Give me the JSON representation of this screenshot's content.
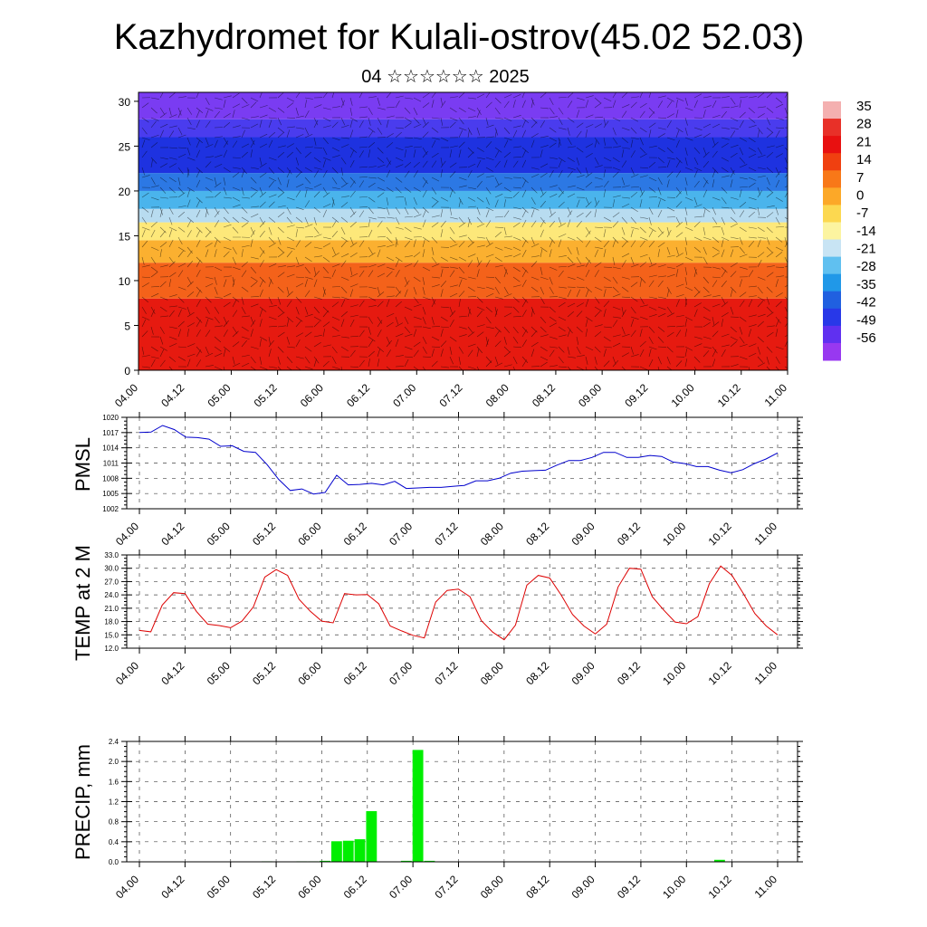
{
  "header": {
    "title": "Kazhydromet for Kulali-ostrov(45.02 52.03)",
    "subtitle": "04 ☆☆☆☆☆☆ 2025"
  },
  "colors": {
    "pmsl_line": "#0000cc",
    "temp_line": "#dd0000",
    "precip_bar": "#00ee00",
    "grid": "#444444"
  },
  "chart_data": [
    {
      "type": "heatmap",
      "title": "",
      "description_of_field": "temperature cross-section with wind barbs (height 0–30 km)",
      "y_ticks": [
        0,
        5,
        10,
        15,
        20,
        25,
        30
      ],
      "ylim": [
        0,
        31
      ],
      "x_tick_labels": [
        "04.00",
        "04.12",
        "05.00",
        "05.12",
        "06.00",
        "06.12",
        "07.00",
        "07.12",
        "08.00",
        "08.12",
        "09.00",
        "09.12",
        "10.00",
        "10.12",
        "11.00"
      ],
      "colorbar_labels": [
        "35",
        "28",
        "21",
        "14",
        "7",
        "0",
        "-7",
        "-14",
        "-21",
        "-28",
        "-35",
        "-42",
        "-49",
        "-56"
      ],
      "colorbar_colors": [
        "#f4b0b0",
        "#e83028",
        "#e81010",
        "#f04010",
        "#f87818",
        "#fca828",
        "#fcd850",
        "#fcf4a0",
        "#c8e4f4",
        "#60c0f0",
        "#2098e8",
        "#2060e0",
        "#2838e8",
        "#6030f0",
        "#9838f0"
      ],
      "layers": [
        {
          "from": 0,
          "to": 8,
          "color": "#e61a10"
        },
        {
          "from": 8,
          "to": 12,
          "color": "#f4621a"
        },
        {
          "from": 12,
          "to": 14.5,
          "color": "#fbb030"
        },
        {
          "from": 14.5,
          "to": 16.5,
          "color": "#fde87a"
        },
        {
          "from": 16.5,
          "to": 18,
          "color": "#b8dcf0"
        },
        {
          "from": 18,
          "to": 20,
          "color": "#4ab4ec"
        },
        {
          "from": 20,
          "to": 22,
          "color": "#2c78e4"
        },
        {
          "from": 22,
          "to": 26,
          "color": "#1e32e0"
        },
        {
          "from": 26,
          "to": 28,
          "color": "#4a3cee"
        },
        {
          "from": 28,
          "to": 31,
          "color": "#7a3cf2"
        }
      ]
    },
    {
      "type": "line",
      "ylabel": "PMSL",
      "ylim": [
        1002,
        1020
      ],
      "y_ticks": [
        "1002",
        "1005",
        "1008",
        "1011",
        "1014",
        "1017",
        "1020"
      ],
      "x_tick_labels": [
        "04.00",
        "04.12",
        "05.00",
        "05.12",
        "06.00",
        "06.12",
        "07.00",
        "07.12",
        "08.00",
        "08.12",
        "09.00",
        "09.12",
        "10.00",
        "10.12",
        "11.00"
      ],
      "series": [
        {
          "values": [
            1017.0,
            1017.1,
            1018.4,
            1017.6,
            1016.1,
            1016.0,
            1015.7,
            1014.3,
            1014.4,
            1013.3,
            1013.1,
            1010.7,
            1007.8,
            1005.6,
            1005.9,
            1004.9,
            1005.2,
            1008.6,
            1006.7,
            1006.8,
            1007.0,
            1006.7,
            1007.4,
            1006.0,
            1006.1,
            1006.2,
            1006.2,
            1006.4,
            1006.6,
            1007.5,
            1007.5,
            1008.0,
            1009.0,
            1009.4,
            1009.5,
            1009.6,
            1010.6,
            1011.5,
            1011.5,
            1012.1,
            1013.1,
            1013.1,
            1012.1,
            1012.1,
            1012.5,
            1012.3,
            1011.2,
            1010.9,
            1010.3,
            1010.3,
            1009.6,
            1009.1,
            1009.7,
            1010.9,
            1011.8,
            1013.0
          ]
        }
      ]
    },
    {
      "type": "line",
      "ylabel": "TEMP at 2 M",
      "ylim": [
        12,
        33
      ],
      "y_ticks": [
        "12.0",
        "15.0",
        "18.0",
        "21.0",
        "24.0",
        "27.0",
        "30.0",
        "33.0"
      ],
      "x_tick_labels": [
        "04.00",
        "04.12",
        "05.00",
        "05.12",
        "06.00",
        "06.12",
        "07.00",
        "07.12",
        "08.00",
        "08.12",
        "09.00",
        "09.12",
        "10.00",
        "10.12",
        "11.00"
      ],
      "series": [
        {
          "values": [
            16.0,
            15.7,
            21.7,
            24.5,
            24.3,
            20.3,
            17.4,
            17.1,
            16.6,
            18.1,
            21.3,
            28.0,
            29.7,
            28.4,
            23.0,
            20.3,
            18.1,
            17.7,
            24.3,
            24.0,
            24.1,
            22.0,
            17.0,
            15.9,
            14.9,
            14.3,
            22.4,
            25.0,
            25.3,
            23.6,
            18.2,
            15.6,
            13.9,
            17.2,
            26.2,
            28.4,
            27.8,
            24.0,
            19.6,
            17.0,
            15.2,
            17.4,
            25.8,
            30.0,
            29.8,
            23.6,
            20.6,
            17.9,
            17.5,
            19.1,
            26.5,
            30.5,
            28.4,
            24.3,
            19.8,
            17.0,
            15.0
          ]
        }
      ]
    },
    {
      "type": "bar",
      "ylabel": "PRECIP, mm",
      "ylim": [
        0,
        2.4
      ],
      "y_ticks": [
        "0.0",
        "0.4",
        "0.8",
        "1.2",
        "1.6",
        "2.0",
        "2.4"
      ],
      "x_tick_labels": [
        "04.00",
        "04.12",
        "05.00",
        "05.12",
        "06.00",
        "06.12",
        "07.00",
        "07.12",
        "08.00",
        "08.12",
        "09.00",
        "09.12",
        "10.00",
        "10.12",
        "11.00"
      ],
      "values": [
        0,
        0,
        0,
        0,
        0,
        0,
        0,
        0,
        0,
        0,
        0,
        0.01,
        0,
        0,
        0.01,
        0.01,
        0.02,
        0.41,
        0.42,
        0.45,
        1.01,
        0,
        0,
        0.02,
        2.23,
        0.02,
        0,
        0,
        0,
        0,
        0,
        0,
        0,
        0,
        0,
        0,
        0,
        0,
        0,
        0,
        0,
        0,
        0,
        0,
        0,
        0,
        0,
        0,
        0,
        0,
        0.04,
        0,
        0,
        0,
        0,
        0
      ]
    }
  ]
}
